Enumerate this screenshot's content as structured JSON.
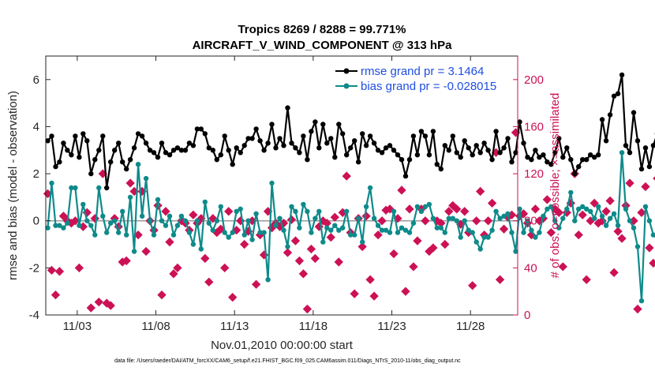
{
  "chart_data": {
    "type": "line",
    "title": "Tropics 8269 / 8288 = 99.771%",
    "subtitle": "AIRCRAFT_V_WIND_COMPONENT @ 313 hPa",
    "xlabel": "Nov.01,2010 00:00:00 start",
    "ylabel": "rmse and bias (model - observation)",
    "y2label": "# of obs: o=possible; ×=assimilated",
    "ylim": [
      -4,
      7
    ],
    "y2lim": [
      0,
      220
    ],
    "xlim": [
      0,
      30
    ],
    "yticks": [
      "-4",
      "-2",
      "0",
      "2",
      "4",
      "6"
    ],
    "y2ticks": [
      "0",
      "40",
      "80",
      "120",
      "160",
      "200"
    ],
    "xticks": [
      {
        "day": 2,
        "label": "11/03"
      },
      {
        "day": 7,
        "label": "11/08"
      },
      {
        "day": 12,
        "label": "11/13"
      },
      {
        "day": 17,
        "label": "11/18"
      },
      {
        "day": 22,
        "label": "11/23"
      },
      {
        "day": 27,
        "label": "11/28"
      }
    ],
    "x_step_days": 0.25,
    "x_start_day": 0.125,
    "series": [
      {
        "name": "rmse grand pr = 3.1464",
        "color": "#000000",
        "axis": "left",
        "values": [
          3.4,
          3.6,
          2.3,
          2.5,
          3.3,
          3.0,
          2.8,
          3.6,
          2.7,
          3.7,
          3.4,
          2.0,
          2.6,
          3.0,
          3.6,
          1.4,
          2.5,
          3.0,
          3.3,
          2.5,
          2.2,
          2.6,
          3.1,
          3.7,
          3.6,
          3.3,
          3.0,
          2.9,
          2.7,
          3.3,
          2.9,
          2.8,
          3.0,
          3.1,
          3.0,
          3.0,
          3.3,
          3.2,
          3.9,
          3.9,
          3.7,
          3.1,
          3.0,
          2.6,
          2.8,
          3.6,
          3.0,
          2.4,
          3.1,
          2.9,
          3.2,
          3.5,
          3.5,
          3.9,
          3.4,
          3.0,
          3.3,
          4.1,
          3.1,
          3.5,
          3.2,
          4.8,
          3.3,
          3.1,
          2.9,
          3.6,
          2.6,
          3.8,
          4.2,
          3.1,
          4.1,
          3.3,
          3.5,
          2.7,
          4.1,
          3.7,
          2.8,
          3.1,
          3.4,
          2.5,
          3.7,
          3.2,
          3.6,
          3.3,
          3.0,
          2.9,
          3.1,
          3.2,
          3.0,
          2.8,
          2.6,
          1.9,
          2.6,
          3.6,
          2.8,
          3.8,
          3.6,
          2.8,
          3.8,
          2.4,
          2.2,
          3.2,
          3.0,
          3.6,
          2.9,
          2.7,
          3.4,
          3.1,
          2.8,
          3.2,
          2.9,
          3.3,
          3.0,
          2.6,
          3.8,
          2.9,
          3.1,
          3.5,
          2.5,
          2.9,
          4.2,
          3.3,
          2.7,
          2.6,
          3.0,
          2.7,
          2.8,
          2.5,
          2.4,
          2.9,
          3.5,
          2.7,
          3.1,
          2.6,
          2.0,
          2.3,
          2.6,
          2.6,
          2.8,
          2.7,
          2.8,
          4.3,
          3.4,
          4.5,
          5.3,
          5.4,
          6.2,
          3.2,
          2.9,
          4.6,
          3.4,
          2.2,
          3.1,
          2.3,
          3.2,
          3.7,
          4.1,
          3.4,
          2.4
        ]
      },
      {
        "name": "bias grand pr = -0.028015",
        "color": "#0f8a8a",
        "axis": "left",
        "values": [
          -0.3,
          1.6,
          -0.2,
          -0.2,
          -0.3,
          -0.1,
          1.4,
          1.4,
          -0.2,
          0.7,
          0.0,
          -0.2,
          -0.6,
          1.4,
          0.2,
          -0.5,
          -0.1,
          0.0,
          -0.5,
          0.4,
          -0.6,
          1.0,
          -1.3,
          2.4,
          0.2,
          1.8,
          0.0,
          -0.6,
          0.9,
          0.0,
          -0.2,
          0.2,
          -0.6,
          -0.2,
          0.2,
          0.0,
          -0.5,
          -1.0,
          0.0,
          -1.2,
          0.8,
          -0.1,
          -0.4,
          0.0,
          0.6,
          -0.5,
          -0.7,
          -0.5,
          0.4,
          0.5,
          -0.6,
          0.0,
          -0.8,
          0.3,
          -0.5,
          -0.5,
          -2.5,
          1.6,
          -0.2,
          0.1,
          -0.4,
          -1.1,
          0.6,
          0.4,
          -0.3,
          0.7,
          0.4,
          -0.5,
          0.1,
          0.4,
          -0.9,
          -0.3,
          -0.4,
          -0.2,
          -0.4,
          -0.3,
          0.4,
          -0.6,
          -0.6,
          0.1,
          -0.9,
          0.6,
          1.4,
          0.1,
          -0.2,
          -0.4,
          -0.4,
          -0.5,
          0.4,
          -0.5,
          -0.3,
          -0.4,
          -0.5,
          -0.1,
          0.6,
          0.4,
          0.6,
          0.7,
          0.1,
          -0.3,
          -0.3,
          -0.5,
          0.1,
          0.1,
          0.0,
          -0.7,
          0.0,
          -0.4,
          -0.5,
          -0.9,
          -1.2,
          -0.7,
          -0.7,
          -0.4,
          0.4,
          0.1,
          0.2,
          0.3,
          -0.5,
          -1.3,
          0.5,
          -0.5,
          0.0,
          -0.4,
          -0.7,
          -0.5,
          0.2,
          0.5,
          0.6,
          0.0,
          -0.3,
          0.1,
          0.5,
          1.2,
          0.0,
          0.5,
          0.6,
          0.5,
          0.4,
          0.1,
          0.6,
          0.2,
          -0.2,
          0.1,
          0.3,
          -0.2,
          2.9,
          0.5,
          0.0,
          -0.3,
          -1.1,
          -3.4,
          0.6,
          0.0,
          -0.6,
          -0.7,
          0.0,
          0.4,
          0.7,
          1.1
        ]
      },
      {
        "name": "obs possible / assimilated",
        "color": "#cc1155",
        "axis": "right",
        "values": [
          103,
          38,
          17,
          37,
          84,
          80,
          78,
          80,
          40,
          75,
          87,
          6,
          82,
          11,
          120,
          10,
          8,
          82,
          75,
          45,
          46,
          112,
          105,
          68,
          105,
          54,
          80,
          72,
          93,
          17,
          88,
          62,
          35,
          40,
          80,
          78,
          72,
          85,
          78,
          82,
          48,
          28,
          82,
          70,
          73,
          40,
          88,
          15,
          72,
          80,
          60,
          71,
          80,
          26,
          68,
          51,
          88,
          74,
          78,
          75,
          78,
          53,
          81,
          63,
          46,
          35,
          5,
          56,
          48,
          75,
          80,
          78,
          66,
          83,
          45,
          87,
          118,
          70,
          18,
          82,
          58,
          84,
          30,
          16,
          68,
          80,
          89,
          90,
          52,
          82,
          106,
          20,
          90,
          41,
          63,
          90,
          80,
          54,
          57,
          80,
          78,
          60,
          88,
          93,
          90,
          77,
          88,
          70,
          25,
          80,
          105,
          68,
          80,
          95,
          138,
          30,
          73,
          83,
          85,
          155,
          84,
          86,
          78,
          68,
          90,
          80,
          82,
          98,
          70,
          90,
          87,
          41,
          87,
          95,
          120,
          68,
          85,
          30,
          80,
          95,
          78,
          80,
          88,
          97,
          36,
          71,
          65,
          93,
          112,
          80,
          5,
          87,
          109,
          57,
          44,
          116,
          97,
          72,
          54,
          77,
          90,
          0
        ]
      }
    ],
    "legend": [
      {
        "label": "rmse grand pr = 3.1464"
      },
      {
        "label": "bias grand pr = -0.028015"
      }
    ],
    "legend_position": "top-right"
  },
  "footer": "data file: /Users/raeder/DAI/ATM_forcXX/CAM6_setup/f.e21.FHIST_BGC.f09_025.CAM6assim.011/Diags_NTrS_2010-11/obs_diag_output.nc"
}
